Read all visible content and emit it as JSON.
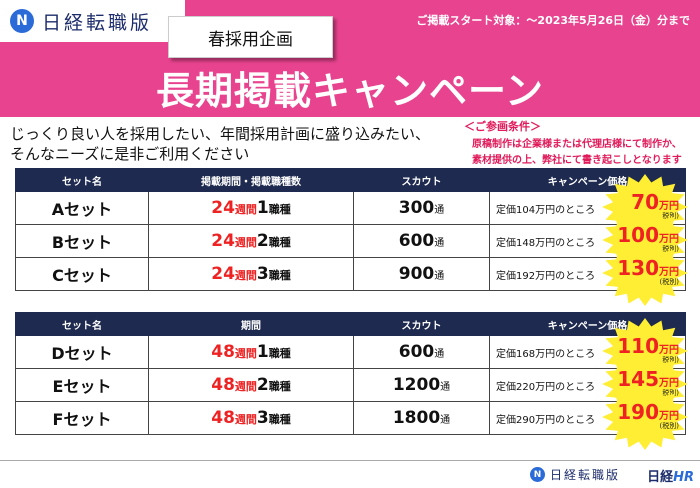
{
  "header": {
    "logo_mark": "N",
    "logo_text": "日経転職版",
    "campaign_tag": "春採用企画",
    "period_note": "ご掲載スタート対象：～2023年5月26日（金）分まで",
    "title": "長期掲載キャンペーン"
  },
  "intro": {
    "line1": "じっくり良い人を採用したい、年間採用計画に盛り込みたい、",
    "line2": "そんなニーズに是非ご利用ください"
  },
  "conditions": {
    "title": "＜ご参画条件＞",
    "line1": "原稿制作は企業様または代理店様にて制作か、",
    "line2": "素材提供の上、弊社にて書き起こしとなります"
  },
  "table1": {
    "headers": [
      "セット名",
      "掲載期間・掲載職種数",
      "スカウト",
      "キャンペーン価格"
    ],
    "rows": [
      {
        "name": "Aセット",
        "weeks": "24",
        "weeks_unit": "週間",
        "jobs": "1",
        "jobs_unit": "職種",
        "scout": "300",
        "scout_unit": "通",
        "list_price": "定価104万円のところ",
        "price": "70",
        "price_unit": "万円",
        "tax": "(税別)"
      },
      {
        "name": "Bセット",
        "weeks": "24",
        "weeks_unit": "週間",
        "jobs": "2",
        "jobs_unit": "職種",
        "scout": "600",
        "scout_unit": "通",
        "list_price": "定価148万円のところ",
        "price": "100",
        "price_unit": "万円",
        "tax": "(税別)"
      },
      {
        "name": "Cセット",
        "weeks": "24",
        "weeks_unit": "週間",
        "jobs": "3",
        "jobs_unit": "職種",
        "scout": "900",
        "scout_unit": "通",
        "list_price": "定価192万円のところ",
        "price": "130",
        "price_unit": "万円",
        "tax": "(税別)"
      }
    ]
  },
  "table2": {
    "headers": [
      "セット名",
      "期間",
      "スカウト",
      "キャンペーン価格"
    ],
    "rows": [
      {
        "name": "Dセット",
        "weeks": "48",
        "weeks_unit": "週間",
        "jobs": "1",
        "jobs_unit": "職種",
        "scout": "600",
        "scout_unit": "通",
        "list_price": "定価168万円のところ",
        "price": "110",
        "price_unit": "万円",
        "tax": "(税別)"
      },
      {
        "name": "Eセット",
        "weeks": "48",
        "weeks_unit": "週間",
        "jobs": "2",
        "jobs_unit": "職種",
        "scout": "1200",
        "scout_unit": "通",
        "list_price": "定価220万円のところ",
        "price": "145",
        "price_unit": "万円",
        "tax": "(税別)"
      },
      {
        "name": "Fセット",
        "weeks": "48",
        "weeks_unit": "週間",
        "jobs": "3",
        "jobs_unit": "職種",
        "scout": "1800",
        "scout_unit": "通",
        "list_price": "定価290万円のところ",
        "price": "190",
        "price_unit": "万円",
        "tax": "(税別)"
      }
    ]
  },
  "footer": {
    "logo_mark": "N",
    "logo_text": "日経転職版",
    "hr_prefix": "日経",
    "hr_suffix": "HR"
  },
  "colors": {
    "header_pink": "#e8438f",
    "table_header_navy": "#1e2a4f",
    "accent_red": "#ee2222",
    "burst_yellow": "#ffee33"
  }
}
